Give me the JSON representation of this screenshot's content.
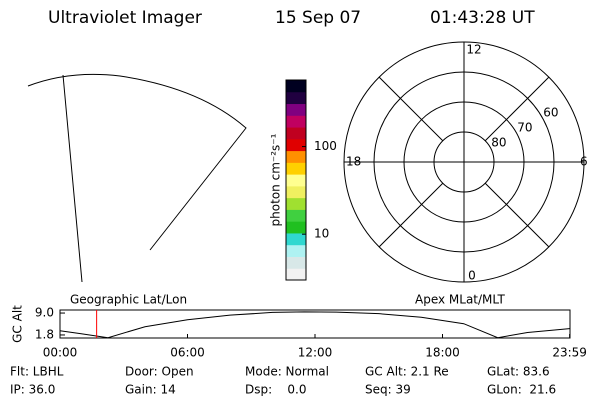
{
  "header": {
    "title": "Ultraviolet Imager",
    "date": "15 Sep 07",
    "time": "01:43:28 UT"
  },
  "colorbar": {
    "label": "photon cm⁻²s⁻¹",
    "scale": "log",
    "clim": [
      3,
      575
    ],
    "ticks": [
      10,
      100
    ],
    "colors": [
      "#f2f2f2",
      "#d8e8e8",
      "#aef2f2",
      "#30d8d0",
      "#20c020",
      "#40d040",
      "#a0e030",
      "#f0f060",
      "#ffff90",
      "#ffd000",
      "#ff9000",
      "#e00000",
      "#c00020",
      "#c00060",
      "#800080",
      "#200040",
      "#000020"
    ]
  },
  "polar": {
    "rings": [
      50,
      60,
      70,
      80
    ],
    "ring_labels": [
      60,
      70,
      80
    ],
    "mlt_labels": [
      12,
      6,
      0,
      18
    ]
  },
  "chart_data": {
    "type": "line",
    "ylabel": "GC Alt",
    "left_label": "Geographic Lat/Lon",
    "right_label": "Apex MLat/MLT",
    "x": [
      0,
      1,
      2.26,
      4,
      6,
      8,
      10,
      11.5,
      13,
      15,
      17,
      19,
      20.6,
      22,
      23.98
    ],
    "values": [
      3.2,
      2.2,
      0.9,
      4.5,
      6.8,
      8.3,
      9.2,
      9.4,
      9.3,
      8.8,
      7.6,
      5.5,
      0.9,
      2.6,
      3.9
    ],
    "color": "#000000",
    "marker_x": 1.724,
    "marker_color": "#ff0000",
    "xlim": [
      0,
      24
    ],
    "ylim": [
      0.8,
      10.0
    ],
    "xticks": [
      {
        "value": 0,
        "label": "00:00"
      },
      {
        "value": 6,
        "label": "06:00"
      },
      {
        "value": 12,
        "label": "12:00"
      },
      {
        "value": 18,
        "label": "18:00"
      },
      {
        "value": 23.983,
        "label": "23:59"
      }
    ],
    "yticks": [
      {
        "value": 1.8,
        "label": "1.8"
      },
      {
        "value": 9.0,
        "label": "9.0"
      }
    ]
  },
  "footer": {
    "rows": [
      [
        "Flt: LBHL",
        "Door: Open",
        "Mode: Normal",
        "GC Alt: 2.1 Re",
        "GLat: 83.6"
      ],
      [
        "IP: 36.0",
        "Gain: 14",
        "Dsp:    0.0",
        "Seq: 39",
        "GLon:  21.6"
      ]
    ]
  }
}
